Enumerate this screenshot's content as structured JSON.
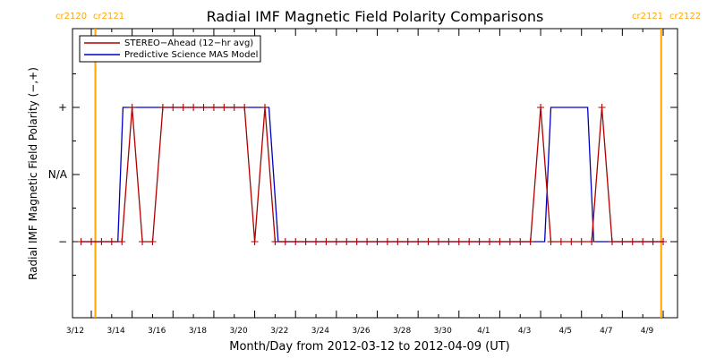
{
  "chart_data": {
    "type": "line",
    "title": "Radial IMF Magnetic Field Polarity Comparisons",
    "xlabel": "Month/Day from 2012-03-12 to 2012-04-09 (UT)",
    "ylabel": "Radial IMF Magnetic Field Polarity (−,+)",
    "xlim": [
      0,
      28
    ],
    "ylim": [
      -2,
      2
    ],
    "x_tick_labels": [
      "3/12",
      "3/14",
      "3/16",
      "3/18",
      "3/20",
      "3/22",
      "3/24",
      "3/26",
      "3/28",
      "3/30",
      "4/1",
      "4/3",
      "4/5",
      "4/7",
      "4/9"
    ],
    "x_tick_values": [
      0,
      2,
      4,
      6,
      8,
      10,
      12,
      14,
      16,
      18,
      20,
      22,
      24,
      26,
      28
    ],
    "y_tick_labels": [
      "+",
      "N/A",
      "−"
    ],
    "y_tick_values": [
      1,
      0,
      -1
    ],
    "legend": {
      "placement": "top-left",
      "entries": [
        "STEREO−Ahead (12−hr avg)",
        "Predictive Science MAS Model"
      ]
    },
    "rotation_markers": [
      {
        "x": 0.2,
        "left_label": "cr2120",
        "right_label": "cr2121",
        "color": "#ffa500"
      },
      {
        "x": 27.9,
        "left_label": "cr2121",
        "right_label": "cr2122",
        "color": "#ffa500"
      }
    ],
    "series": [
      {
        "name": "STEREO−Ahead (12−hr avg)",
        "color": "#b00000",
        "marker": "+",
        "x": [
          -0.5,
          0,
          0.5,
          1,
          1.5,
          2,
          2.5,
          3,
          3.5,
          4,
          4.5,
          5,
          5.5,
          6,
          6.5,
          7,
          7.5,
          8,
          8.5,
          9,
          9.5,
          10,
          10.5,
          11,
          11.5,
          12,
          12.5,
          13,
          13.5,
          14,
          14.5,
          15,
          15.5,
          16,
          16.5,
          17,
          17.5,
          18,
          18.5,
          19,
          19.5,
          20,
          20.5,
          21,
          21.5,
          22,
          22.5,
          23,
          23.5,
          24,
          24.5,
          25,
          25.5,
          26,
          26.5,
          27,
          27.5,
          28
        ],
        "y": [
          -1,
          -1,
          -1,
          -1,
          -1,
          1,
          -1,
          -1,
          1,
          1,
          1,
          1,
          1,
          1,
          1,
          1,
          1,
          -1,
          1,
          -1,
          -1,
          -1,
          -1,
          -1,
          -1,
          -1,
          -1,
          -1,
          -1,
          -1,
          -1,
          -1,
          -1,
          -1,
          -1,
          -1,
          -1,
          -1,
          -1,
          -1,
          -1,
          -1,
          -1,
          -1,
          -1,
          1,
          -1,
          -1,
          -1,
          -1,
          -1,
          1,
          -1,
          -1,
          -1,
          -1,
          -1,
          -1
        ]
      },
      {
        "name": "Predictive Science MAS Model",
        "color": "#0000c0",
        "x": [
          -0.5,
          1.3,
          1.55,
          3.0,
          6.5,
          6.9,
          8.7,
          9.15,
          21.8,
          22.2,
          22.5,
          24.3,
          24.6,
          25.0,
          28.0
        ],
        "y": [
          -1,
          -1,
          1,
          1,
          1,
          1,
          1,
          -1,
          -1,
          -1,
          1,
          1,
          -1,
          -1,
          -1
        ]
      }
    ],
    "grid": false
  }
}
